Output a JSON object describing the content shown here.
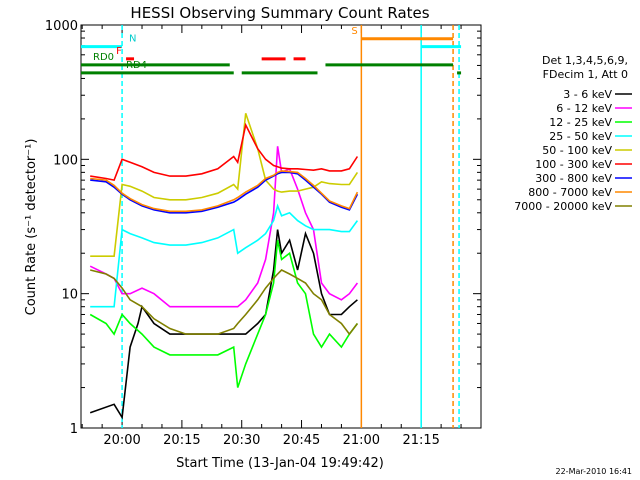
{
  "chart_data": {
    "type": "line",
    "title": "HESSI Observing Summary Count Rates",
    "xlabel": "Start Time (13-Jan-04 19:49:42)",
    "ylabel": "Count Rate (s⁻¹ detector⁻¹)",
    "y_scale": "log",
    "ylim": [
      1,
      1000
    ],
    "xlim": [
      "19:49:42",
      "21:30:00"
    ],
    "x_ticks": [
      "20:00",
      "20:15",
      "20:30",
      "20:45",
      "21:00",
      "21:15"
    ],
    "y_ticks": [
      "1",
      "10",
      "100",
      "1000"
    ],
    "legend_header": [
      "Det 1,3,4,5,6,9,",
      "FDecim 1, Att 0"
    ],
    "legend_position": "right",
    "timestamp": "22-Mar-2010 16:41",
    "series": [
      {
        "name": "3 - 6 keV",
        "color": "#000000",
        "points": [
          [
            "19:52",
            1.3
          ],
          [
            "19:58",
            1.5
          ],
          [
            "20:00",
            1.2
          ],
          [
            "20:02",
            4
          ],
          [
            "20:04",
            6
          ],
          [
            "20:05",
            8
          ],
          [
            "20:08",
            6
          ],
          [
            "20:12",
            5
          ],
          [
            "20:16",
            5
          ],
          [
            "20:20",
            5
          ],
          [
            "20:24",
            5
          ],
          [
            "20:28",
            5
          ],
          [
            "20:29",
            5
          ],
          [
            "20:31",
            5
          ],
          [
            "20:34",
            6
          ],
          [
            "20:36",
            7
          ],
          [
            "20:38",
            15
          ],
          [
            "20:39",
            30
          ],
          [
            "20:40",
            20
          ],
          [
            "20:42",
            25
          ],
          [
            "20:44",
            15
          ],
          [
            "20:46",
            28
          ],
          [
            "20:48",
            20
          ],
          [
            "20:50",
            10
          ],
          [
            "20:52",
            7
          ],
          [
            "20:55",
            7
          ],
          [
            "20:57",
            8
          ],
          [
            "20:59",
            9
          ]
        ]
      },
      {
        "name": "6 - 12 keV",
        "color": "#ff00ff",
        "points": [
          [
            "19:52",
            16
          ],
          [
            "19:56",
            14
          ],
          [
            "19:58",
            13
          ],
          [
            "20:00",
            10
          ],
          [
            "20:02",
            10
          ],
          [
            "20:05",
            11
          ],
          [
            "20:08",
            10
          ],
          [
            "20:12",
            8
          ],
          [
            "20:16",
            8
          ],
          [
            "20:20",
            8
          ],
          [
            "20:24",
            8
          ],
          [
            "20:28",
            8
          ],
          [
            "20:29",
            8
          ],
          [
            "20:31",
            9
          ],
          [
            "20:34",
            12
          ],
          [
            "20:36",
            18
          ],
          [
            "20:38",
            40
          ],
          [
            "20:39",
            125
          ],
          [
            "20:40",
            80
          ],
          [
            "20:42",
            85
          ],
          [
            "20:44",
            60
          ],
          [
            "20:46",
            40
          ],
          [
            "20:48",
            30
          ],
          [
            "20:50",
            12
          ],
          [
            "20:52",
            10
          ],
          [
            "20:55",
            9
          ],
          [
            "20:57",
            10
          ],
          [
            "20:59",
            12
          ]
        ]
      },
      {
        "name": "12 - 25 keV",
        "color": "#00ff00",
        "points": [
          [
            "19:52",
            7
          ],
          [
            "19:56",
            6
          ],
          [
            "19:58",
            5
          ],
          [
            "20:00",
            7
          ],
          [
            "20:02",
            6
          ],
          [
            "20:05",
            5
          ],
          [
            "20:08",
            4
          ],
          [
            "20:12",
            3.5
          ],
          [
            "20:16",
            3.5
          ],
          [
            "20:20",
            3.5
          ],
          [
            "20:24",
            3.5
          ],
          [
            "20:28",
            4
          ],
          [
            "20:29",
            2
          ],
          [
            "20:31",
            3
          ],
          [
            "20:34",
            5
          ],
          [
            "20:36",
            7
          ],
          [
            "20:38",
            12
          ],
          [
            "20:39",
            25
          ],
          [
            "20:40",
            18
          ],
          [
            "20:42",
            20
          ],
          [
            "20:44",
            12
          ],
          [
            "20:46",
            10
          ],
          [
            "20:48",
            5
          ],
          [
            "20:50",
            4
          ],
          [
            "20:52",
            5
          ],
          [
            "20:55",
            4
          ],
          [
            "20:57",
            5
          ],
          [
            "20:59",
            6
          ]
        ]
      },
      {
        "name": "25 - 50 keV",
        "color": "#00ffff",
        "points": [
          [
            "19:52",
            8
          ],
          [
            "19:56",
            8
          ],
          [
            "19:58",
            8
          ],
          [
            "20:00",
            30
          ],
          [
            "20:02",
            28
          ],
          [
            "20:05",
            26
          ],
          [
            "20:08",
            24
          ],
          [
            "20:12",
            23
          ],
          [
            "20:16",
            23
          ],
          [
            "20:20",
            24
          ],
          [
            "20:24",
            26
          ],
          [
            "20:28",
            30
          ],
          [
            "20:29",
            20
          ],
          [
            "20:31",
            22
          ],
          [
            "20:34",
            25
          ],
          [
            "20:36",
            28
          ],
          [
            "20:38",
            35
          ],
          [
            "20:39",
            45
          ],
          [
            "20:40",
            38
          ],
          [
            "20:42",
            40
          ],
          [
            "20:44",
            35
          ],
          [
            "20:46",
            32
          ],
          [
            "20:48",
            30
          ],
          [
            "20:50",
            30
          ],
          [
            "20:52",
            30
          ],
          [
            "20:55",
            29
          ],
          [
            "20:57",
            29
          ],
          [
            "20:59",
            35
          ]
        ]
      },
      {
        "name": "50 - 100 keV",
        "color": "#cccc00",
        "points": [
          [
            "19:52",
            19
          ],
          [
            "19:56",
            19
          ],
          [
            "19:58",
            19
          ],
          [
            "20:00",
            65
          ],
          [
            "20:02",
            63
          ],
          [
            "20:05",
            58
          ],
          [
            "20:08",
            52
          ],
          [
            "20:12",
            50
          ],
          [
            "20:16",
            50
          ],
          [
            "20:20",
            52
          ],
          [
            "20:24",
            56
          ],
          [
            "20:28",
            65
          ],
          [
            "20:29",
            60
          ],
          [
            "20:31",
            220
          ],
          [
            "20:34",
            120
          ],
          [
            "20:36",
            70
          ],
          [
            "20:38",
            60
          ],
          [
            "20:39",
            58
          ],
          [
            "20:40",
            57
          ],
          [
            "20:42",
            58
          ],
          [
            "20:44",
            58
          ],
          [
            "20:46",
            60
          ],
          [
            "20:48",
            62
          ],
          [
            "20:50",
            68
          ],
          [
            "20:52",
            66
          ],
          [
            "20:55",
            65
          ],
          [
            "20:57",
            65
          ],
          [
            "20:59",
            80
          ]
        ]
      },
      {
        "name": "100 - 300 keV",
        "color": "#ff0000",
        "points": [
          [
            "19:52",
            75
          ],
          [
            "19:56",
            72
          ],
          [
            "19:58",
            70
          ],
          [
            "20:00",
            100
          ],
          [
            "20:02",
            95
          ],
          [
            "20:05",
            88
          ],
          [
            "20:08",
            80
          ],
          [
            "20:12",
            75
          ],
          [
            "20:16",
            75
          ],
          [
            "20:20",
            78
          ],
          [
            "20:24",
            85
          ],
          [
            "20:28",
            105
          ],
          [
            "20:29",
            95
          ],
          [
            "20:31",
            180
          ],
          [
            "20:34",
            120
          ],
          [
            "20:36",
            100
          ],
          [
            "20:38",
            90
          ],
          [
            "20:39",
            88
          ],
          [
            "20:40",
            86
          ],
          [
            "20:42",
            85
          ],
          [
            "20:44",
            85
          ],
          [
            "20:46",
            84
          ],
          [
            "20:48",
            83
          ],
          [
            "20:50",
            85
          ],
          [
            "20:52",
            82
          ],
          [
            "20:55",
            82
          ],
          [
            "20:57",
            85
          ],
          [
            "20:59",
            105
          ]
        ]
      },
      {
        "name": "300 - 800 keV",
        "color": "#0000ff",
        "points": [
          [
            "19:52",
            70
          ],
          [
            "19:56",
            68
          ],
          [
            "19:58",
            62
          ],
          [
            "20:00",
            55
          ],
          [
            "20:02",
            50
          ],
          [
            "20:05",
            45
          ],
          [
            "20:08",
            42
          ],
          [
            "20:12",
            40
          ],
          [
            "20:16",
            40
          ],
          [
            "20:20",
            41
          ],
          [
            "20:24",
            44
          ],
          [
            "20:28",
            48
          ],
          [
            "20:29",
            50
          ],
          [
            "20:31",
            55
          ],
          [
            "20:34",
            62
          ],
          [
            "20:36",
            70
          ],
          [
            "20:38",
            75
          ],
          [
            "20:39",
            78
          ],
          [
            "20:40",
            80
          ],
          [
            "20:42",
            80
          ],
          [
            "20:44",
            78
          ],
          [
            "20:46",
            70
          ],
          [
            "20:48",
            62
          ],
          [
            "20:50",
            55
          ],
          [
            "20:52",
            48
          ],
          [
            "20:55",
            44
          ],
          [
            "20:57",
            42
          ],
          [
            "20:59",
            55
          ]
        ]
      },
      {
        "name": "800 - 7000 keV",
        "color": "#ff8800",
        "points": [
          [
            "19:52",
            72
          ],
          [
            "19:56",
            70
          ],
          [
            "19:58",
            64
          ],
          [
            "20:00",
            56
          ],
          [
            "20:02",
            51
          ],
          [
            "20:05",
            46
          ],
          [
            "20:08",
            43
          ],
          [
            "20:12",
            41
          ],
          [
            "20:16",
            41
          ],
          [
            "20:20",
            42
          ],
          [
            "20:24",
            45
          ],
          [
            "20:28",
            50
          ],
          [
            "20:29",
            52
          ],
          [
            "20:31",
            57
          ],
          [
            "20:34",
            64
          ],
          [
            "20:36",
            72
          ],
          [
            "20:38",
            76
          ],
          [
            "20:39",
            80
          ],
          [
            "20:40",
            82
          ],
          [
            "20:42",
            81
          ],
          [
            "20:44",
            80
          ],
          [
            "20:46",
            72
          ],
          [
            "20:48",
            64
          ],
          [
            "20:50",
            56
          ],
          [
            "20:52",
            49
          ],
          [
            "20:55",
            45
          ],
          [
            "20:57",
            43
          ],
          [
            "20:59",
            57
          ]
        ]
      },
      {
        "name": "7000 - 20000 keV",
        "color": "#808000",
        "points": [
          [
            "19:52",
            15
          ],
          [
            "19:56",
            14
          ],
          [
            "19:58",
            13
          ],
          [
            "20:00",
            11
          ],
          [
            "20:02",
            9
          ],
          [
            "20:05",
            8
          ],
          [
            "20:08",
            6.5
          ],
          [
            "20:12",
            5.5
          ],
          [
            "20:16",
            5
          ],
          [
            "20:20",
            5
          ],
          [
            "20:24",
            5
          ],
          [
            "20:28",
            5.5
          ],
          [
            "20:29",
            6
          ],
          [
            "20:31",
            7
          ],
          [
            "20:34",
            9
          ],
          [
            "20:36",
            11
          ],
          [
            "20:38",
            13
          ],
          [
            "20:39",
            14
          ],
          [
            "20:40",
            15
          ],
          [
            "20:42",
            14
          ],
          [
            "20:44",
            13
          ],
          [
            "20:46",
            12
          ],
          [
            "20:48",
            10
          ],
          [
            "20:50",
            9
          ],
          [
            "20:52",
            7
          ],
          [
            "20:55",
            6
          ],
          [
            "20:57",
            5
          ],
          [
            "20:59",
            6
          ]
        ]
      }
    ],
    "flag_bars": [
      {
        "label": "N",
        "color": "#00ffff",
        "y": 690,
        "segments": [
          [
            "19:49:42",
            "20:00"
          ],
          [
            "21:15",
            "21:25"
          ]
        ]
      },
      {
        "label": "F",
        "color": "#ff0000",
        "y": 560,
        "segments": [
          [
            "20:01",
            "20:03"
          ],
          [
            "20:35",
            "20:41"
          ],
          [
            "20:43",
            "20:46"
          ]
        ]
      },
      {
        "label": "RD0",
        "color": "#008000",
        "y": 505,
        "segments": [
          [
            "19:49:42",
            "20:27"
          ],
          [
            "20:51",
            "21:23"
          ]
        ]
      },
      {
        "label": "RD4",
        "color": "#008000",
        "y": 440,
        "segments": [
          [
            "19:49:42",
            "20:28"
          ],
          [
            "20:30",
            "20:49"
          ],
          [
            "21:24",
            "21:25"
          ]
        ]
      },
      {
        "label": "S",
        "color": "#ff8800",
        "y": 790,
        "segments": [
          [
            "21:00",
            "21:23"
          ]
        ]
      }
    ],
    "vertical_markers": [
      {
        "time": "20:00",
        "color": "#00ffff",
        "style": "dashed"
      },
      {
        "time": "21:00",
        "color": "#ff8800",
        "style": "solid"
      },
      {
        "time": "21:15",
        "color": "#00ffff",
        "style": "solid"
      },
      {
        "time": "21:23",
        "color": "#ff8800",
        "style": "dashed"
      },
      {
        "time": "21:24:30",
        "color": "#00ffff",
        "style": "dashed"
      }
    ],
    "grid": false
  }
}
